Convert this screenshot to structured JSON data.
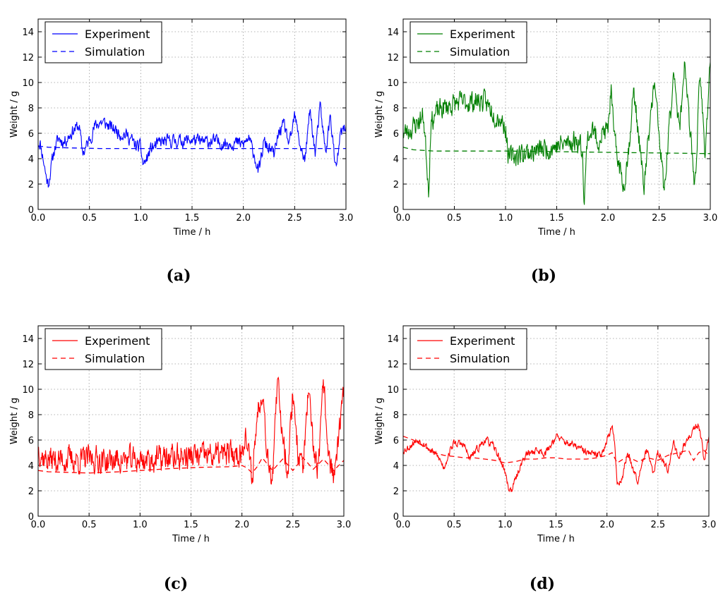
{
  "chart_data": [
    {
      "type": "line",
      "caption": "(a)",
      "color": "#0000ff",
      "xlabel": "Time / h",
      "ylabel": "Weight / g",
      "xlim": [
        0,
        3
      ],
      "ylim": [
        0,
        15
      ],
      "xticks": [
        "0.0",
        "0.5",
        "1.0",
        "1.5",
        "2.0",
        "2.5",
        "3.0"
      ],
      "yticks": [
        "0",
        "2",
        "4",
        "6",
        "8",
        "10",
        "12",
        "14"
      ],
      "grid": true,
      "legend": "upper-left",
      "series": [
        {
          "name": "Experiment",
          "style": "solid",
          "noise": 0.45,
          "seed": 11,
          "x": [
            0,
            0.02,
            0.05,
            0.08,
            0.1,
            0.13,
            0.16,
            0.2,
            0.25,
            0.3,
            0.35,
            0.4,
            0.43,
            0.45,
            0.5,
            0.55,
            0.6,
            0.65,
            0.7,
            0.75,
            0.8,
            0.85,
            0.9,
            0.95,
            1.0,
            1.02,
            1.05,
            1.1,
            1.2,
            1.3,
            1.4,
            1.5,
            1.6,
            1.7,
            1.8,
            1.9,
            2.0,
            2.05,
            2.1,
            2.15,
            2.2,
            2.25,
            2.3,
            2.35,
            2.4,
            2.45,
            2.5,
            2.55,
            2.6,
            2.65,
            2.7,
            2.75,
            2.8,
            2.85,
            2.9,
            2.95,
            3.0
          ],
          "y": [
            5.3,
            5.2,
            4.0,
            2.5,
            2.0,
            3.5,
            4.8,
            5.6,
            5.3,
            5.8,
            6.3,
            6.6,
            4.6,
            4.6,
            5.5,
            6.5,
            6.9,
            6.8,
            6.5,
            6.3,
            6.0,
            5.9,
            5.6,
            5.0,
            4.9,
            3.6,
            3.8,
            4.8,
            5.3,
            5.4,
            5.4,
            5.5,
            5.3,
            5.4,
            5.2,
            5.3,
            5.1,
            5.6,
            4.5,
            2.9,
            5.3,
            4.8,
            4.3,
            6.2,
            6.6,
            5.0,
            7.4,
            5.2,
            3.8,
            7.9,
            4.4,
            8.1,
            4.5,
            7.4,
            3.0,
            6.0,
            6.4
          ]
        },
        {
          "name": "Simulation",
          "style": "dashed",
          "noise": 0,
          "seed": 0,
          "x": [
            0,
            0.1,
            0.3,
            0.6,
            1.0,
            1.5,
            2.0,
            2.5,
            3.0
          ],
          "y": [
            5.0,
            4.9,
            4.85,
            4.8,
            4.8,
            4.8,
            4.8,
            4.8,
            4.8
          ]
        }
      ]
    },
    {
      "type": "line",
      "caption": "(b)",
      "color": "#007f00",
      "xlabel": "Time / h",
      "ylabel": "Weight / g",
      "xlim": [
        0,
        3
      ],
      "ylim": [
        0,
        15
      ],
      "xticks": [
        "0.0",
        "0.5",
        "1.0",
        "1.5",
        "2.0",
        "2.5",
        "3.0"
      ],
      "yticks": [
        "0",
        "2",
        "4",
        "6",
        "8",
        "10",
        "12",
        "14"
      ],
      "grid": true,
      "legend": "upper-left",
      "series": [
        {
          "name": "Experiment",
          "style": "solid",
          "noise": 0.75,
          "seed": 23,
          "x": [
            0,
            0.05,
            0.1,
            0.15,
            0.2,
            0.25,
            0.27,
            0.3,
            0.35,
            0.4,
            0.45,
            0.5,
            0.55,
            0.6,
            0.65,
            0.7,
            0.75,
            0.8,
            0.85,
            0.9,
            0.95,
            1.0,
            1.03,
            1.1,
            1.2,
            1.3,
            1.4,
            1.5,
            1.6,
            1.7,
            1.75,
            1.77,
            1.8,
            1.85,
            1.9,
            1.95,
            2.0,
            2.03,
            2.06,
            2.1,
            2.15,
            2.2,
            2.25,
            2.3,
            2.35,
            2.4,
            2.45,
            2.5,
            2.55,
            2.6,
            2.65,
            2.7,
            2.75,
            2.8,
            2.85,
            2.9,
            2.95,
            3.0
          ],
          "y": [
            6.0,
            6.2,
            6.5,
            7.0,
            7.3,
            1.5,
            6.8,
            7.3,
            7.8,
            8.0,
            8.2,
            8.3,
            8.4,
            8.4,
            8.5,
            8.5,
            8.6,
            8.4,
            8.0,
            7.5,
            7.2,
            6.5,
            4.0,
            4.3,
            4.5,
            4.6,
            4.8,
            5.0,
            5.2,
            5.5,
            4.8,
            0.8,
            5.8,
            6.2,
            5.5,
            6.0,
            6.2,
            9.5,
            5.5,
            4.0,
            1.8,
            4.5,
            9.3,
            6.0,
            1.5,
            5.8,
            10.0,
            6.0,
            1.2,
            6.5,
            11.0,
            6.0,
            12.0,
            6.0,
            2.0,
            10.5,
            4.5,
            12.0
          ]
        },
        {
          "name": "Simulation",
          "style": "dashed",
          "noise": 0,
          "seed": 0,
          "x": [
            0,
            0.1,
            0.3,
            0.6,
            1.0,
            1.5,
            2.0,
            2.5,
            3.0
          ],
          "y": [
            4.9,
            4.7,
            4.6,
            4.6,
            4.6,
            4.55,
            4.5,
            4.45,
            4.4
          ]
        }
      ]
    },
    {
      "type": "line",
      "caption": "(c)",
      "color": "#ff0000",
      "xlabel": "Time / h",
      "ylabel": "Weight / g",
      "xlim": [
        0,
        3
      ],
      "ylim": [
        0,
        15
      ],
      "xticks": [
        "0.0",
        "0.5",
        "1.0",
        "1.5",
        "2.0",
        "2.5",
        "3.0"
      ],
      "yticks": [
        "0",
        "2",
        "4",
        "6",
        "8",
        "10",
        "12",
        "14"
      ],
      "grid": true,
      "legend": "upper-left",
      "series": [
        {
          "name": "Experiment",
          "style": "solid",
          "noise": 0.9,
          "seed": 37,
          "x": [
            0,
            0.05,
            0.1,
            0.2,
            0.3,
            0.4,
            0.5,
            0.6,
            0.7,
            0.8,
            0.9,
            1.0,
            1.1,
            1.2,
            1.3,
            1.4,
            1.5,
            1.6,
            1.7,
            1.8,
            1.9,
            2.0,
            2.03,
            2.06,
            2.1,
            2.15,
            2.2,
            2.25,
            2.3,
            2.35,
            2.4,
            2.45,
            2.5,
            2.55,
            2.6,
            2.65,
            2.7,
            2.75,
            2.8,
            2.85,
            2.9,
            2.95,
            3.0
          ],
          "y": [
            5.5,
            4.6,
            4.5,
            4.4,
            4.5,
            4.4,
            4.5,
            4.5,
            4.3,
            4.5,
            4.4,
            4.4,
            4.5,
            4.5,
            4.6,
            4.7,
            4.7,
            4.7,
            4.8,
            4.8,
            4.9,
            5.0,
            6.8,
            5.0,
            3.0,
            8.0,
            10.2,
            5.0,
            3.0,
            10.5,
            6.5,
            3.5,
            10.0,
            5.0,
            3.8,
            9.5,
            5.5,
            3.5,
            10.5,
            5.0,
            3.0,
            6.0,
            10.0
          ]
        },
        {
          "name": "Simulation",
          "style": "dashed",
          "noise": 0,
          "seed": 0,
          "x": [
            0,
            0.1,
            0.3,
            0.5,
            0.8,
            1.0,
            1.3,
            1.6,
            1.9,
            2.0,
            2.05,
            2.1,
            2.15,
            2.2,
            2.3,
            2.4,
            2.5,
            2.6,
            2.7,
            2.8,
            2.9,
            3.0
          ],
          "y": [
            3.6,
            3.5,
            3.45,
            3.4,
            3.5,
            3.6,
            3.75,
            3.85,
            3.9,
            4.0,
            3.8,
            3.4,
            3.9,
            4.6,
            3.6,
            4.5,
            3.6,
            4.6,
            3.7,
            4.5,
            3.6,
            4.4
          ]
        }
      ]
    },
    {
      "type": "line",
      "caption": "(d)",
      "color": "#ff0000",
      "xlabel": "Time / h",
      "ylabel": "Weight / g",
      "xlim": [
        0,
        3
      ],
      "ylim": [
        0,
        15
      ],
      "xticks": [
        "0.0",
        "0.5",
        "1.0",
        "1.5",
        "2.0",
        "2.5",
        "3.0"
      ],
      "yticks": [
        "0",
        "2",
        "4",
        "6",
        "8",
        "10",
        "12",
        "14"
      ],
      "grid": true,
      "legend": "upper-left",
      "series": [
        {
          "name": "Experiment",
          "style": "solid",
          "noise": 0.25,
          "seed": 53,
          "x": [
            0,
            0.05,
            0.1,
            0.15,
            0.2,
            0.25,
            0.3,
            0.35,
            0.4,
            0.45,
            0.5,
            0.55,
            0.6,
            0.65,
            0.7,
            0.75,
            0.8,
            0.85,
            0.9,
            0.95,
            1.0,
            1.03,
            1.06,
            1.1,
            1.15,
            1.2,
            1.3,
            1.4,
            1.5,
            1.55,
            1.6,
            1.7,
            1.8,
            1.9,
            1.95,
            2.0,
            2.05,
            2.08,
            2.1,
            2.15,
            2.2,
            2.25,
            2.3,
            2.35,
            2.4,
            2.45,
            2.5,
            2.55,
            2.6,
            2.65,
            2.7,
            2.75,
            2.8,
            2.85,
            2.9,
            2.93,
            2.95,
            3.0
          ],
          "y": [
            5.2,
            5.4,
            5.8,
            6.0,
            5.8,
            5.3,
            5.0,
            4.6,
            3.8,
            5.0,
            5.8,
            5.7,
            5.6,
            4.5,
            5.0,
            5.5,
            6.0,
            5.8,
            5.3,
            4.5,
            3.5,
            2.3,
            2.0,
            2.8,
            4.0,
            4.8,
            5.2,
            5.0,
            6.3,
            6.0,
            5.8,
            5.5,
            5.0,
            4.8,
            5.0,
            6.0,
            7.0,
            5.5,
            2.5,
            3.0,
            5.0,
            4.0,
            2.8,
            4.5,
            5.3,
            3.2,
            5.0,
            4.5,
            3.5,
            6.0,
            4.5,
            5.5,
            6.0,
            7.0,
            7.2,
            6.0,
            4.5,
            6.0
          ]
        },
        {
          "name": "Simulation",
          "style": "dashed",
          "noise": 0,
          "seed": 0,
          "x": [
            0,
            0.1,
            0.2,
            0.3,
            0.4,
            0.5,
            0.6,
            0.7,
            0.8,
            0.9,
            1.0,
            1.1,
            1.2,
            1.3,
            1.4,
            1.5,
            1.6,
            1.7,
            1.8,
            1.9,
            2.0,
            2.05,
            2.1,
            2.2,
            2.3,
            2.4,
            2.5,
            2.6,
            2.7,
            2.8,
            2.85,
            2.9,
            2.95,
            3.0
          ],
          "y": [
            6.3,
            6.0,
            5.5,
            5.0,
            4.8,
            4.7,
            4.6,
            4.6,
            4.5,
            4.4,
            4.2,
            4.3,
            4.5,
            4.5,
            4.6,
            4.6,
            4.5,
            4.5,
            4.5,
            4.6,
            4.8,
            5.0,
            4.2,
            4.7,
            4.3,
            4.6,
            4.4,
            4.8,
            5.0,
            5.2,
            4.4,
            5.0,
            5.2,
            4.8
          ]
        }
      ]
    }
  ]
}
